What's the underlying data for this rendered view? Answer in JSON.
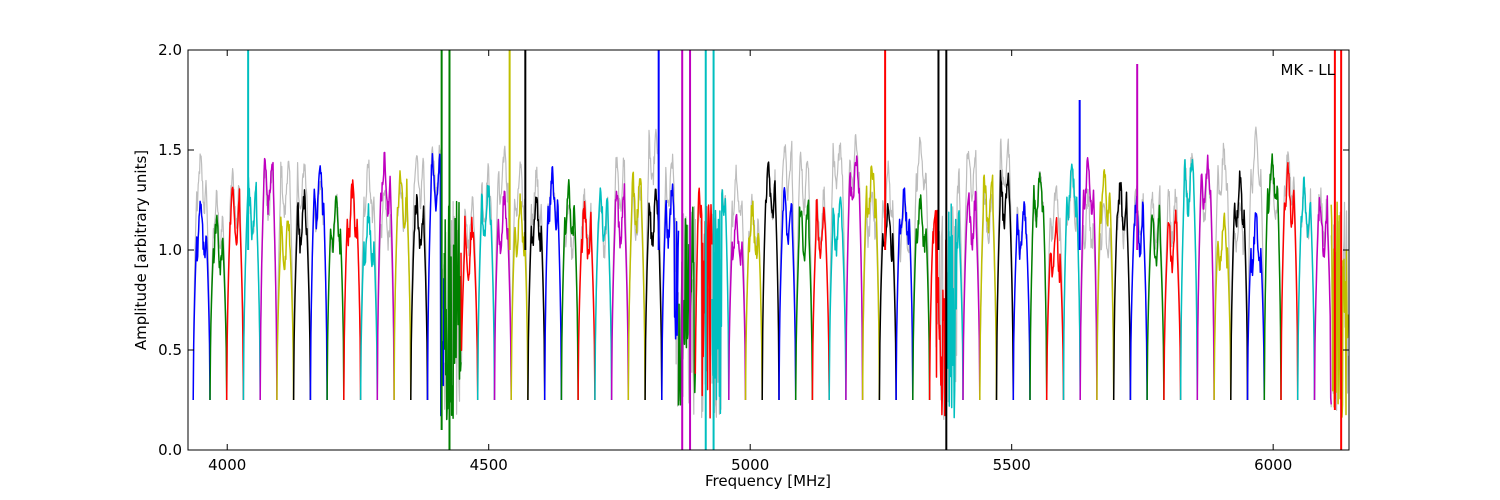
{
  "chart_data": {
    "type": "line",
    "title": "",
    "annotation": "MK - LL",
    "xlabel": "Frequency [MHz]",
    "ylabel": "Amplitude [arbitrary units]",
    "xlim": [
      3925,
      6145
    ],
    "ylim": [
      0.0,
      2.0
    ],
    "xticks": [
      4000,
      4500,
      5000,
      5500,
      6000
    ],
    "xtick_labels": [
      "4000",
      "4500",
      "5000",
      "5500",
      "6000"
    ],
    "yticks": [
      0.0,
      0.5,
      1.0,
      1.5,
      2.0
    ],
    "ytick_labels": [
      "0.0",
      "0.5",
      "1.0",
      "1.5",
      "2.0"
    ],
    "grid": false,
    "legend": "none",
    "background_series_color": "#bdbdbd",
    "color_cycle": [
      "#0000ff",
      "#008000",
      "#ff0000",
      "#00bfbf",
      "#bf00bf",
      "#bfbf00",
      "#000000"
    ],
    "band_start_mhz": 3935,
    "band_width_mhz": 32,
    "band_count": 69,
    "band_shape": "bandpass: edges drop to ~0.25, interior ~1.0–1.4 with ripple",
    "spikes": [
      {
        "x": 4040,
        "y_top": 2.0,
        "color": "#00bfbf"
      },
      {
        "x": 4410,
        "y_bottom": 0.1,
        "y_top": 2.0,
        "color": "#008000"
      },
      {
        "x": 4425,
        "y_bottom": 0.0,
        "y_top": 2.0,
        "color": "#008000"
      },
      {
        "x": 4540,
        "y_top": 2.0,
        "color": "#bfbf00"
      },
      {
        "x": 4570,
        "y_top": 2.0,
        "color": "#000000"
      },
      {
        "x": 4825,
        "y_top": 2.0,
        "color": "#0000ff"
      },
      {
        "x": 4870,
        "y_bottom": 0.0,
        "y_top": 2.0,
        "color": "#bf00bf"
      },
      {
        "x": 4885,
        "y_bottom": 0.0,
        "y_top": 2.0,
        "color": "#bf00bf"
      },
      {
        "x": 4915,
        "y_bottom": 0.0,
        "y_top": 2.0,
        "color": "#00bfbf"
      },
      {
        "x": 4930,
        "y_bottom": 0.0,
        "y_top": 2.0,
        "color": "#00bfbf"
      },
      {
        "x": 5258,
        "y_top": 2.0,
        "color": "#ff0000"
      },
      {
        "x": 5360,
        "y_top": 2.0,
        "color": "#000000"
      },
      {
        "x": 5375,
        "y_bottom": 0.0,
        "y_top": 2.0,
        "color": "#000000"
      },
      {
        "x": 5630,
        "y_top": 1.75,
        "color": "#0000ff"
      },
      {
        "x": 5740,
        "y_top": 1.93,
        "color": "#bf00bf"
      },
      {
        "x": 6118,
        "y_bottom": 0.2,
        "y_top": 2.0,
        "color": "#ff0000"
      },
      {
        "x": 6130,
        "y_bottom": 0.0,
        "y_top": 2.0,
        "color": "#ff0000"
      }
    ],
    "noisy_regions": [
      {
        "x_from": 4408,
        "x_to": 4448,
        "color": "#008000"
      },
      {
        "x_from": 4855,
        "x_to": 4895,
        "color": "#bf00bf"
      },
      {
        "x_from": 4905,
        "x_to": 4945,
        "color": "#00bfbf"
      },
      {
        "x_from": 5355,
        "x_to": 5395,
        "color": "#000000"
      },
      {
        "x_from": 6110,
        "x_to": 6145,
        "color": "#ff0000"
      }
    ]
  }
}
